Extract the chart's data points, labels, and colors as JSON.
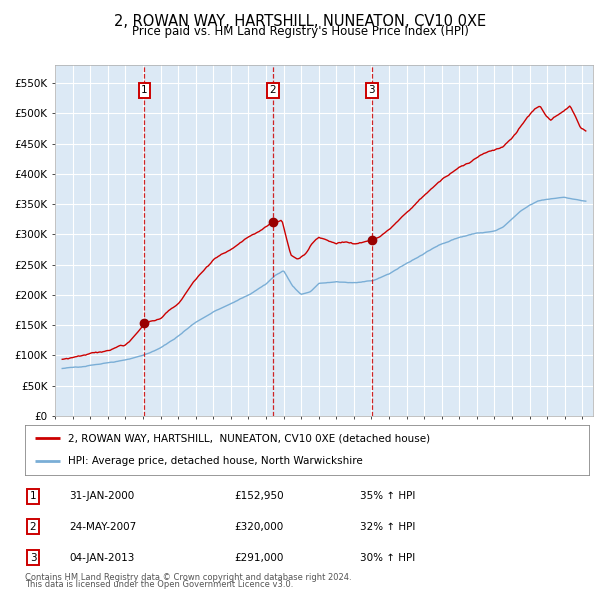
{
  "title": "2, ROWAN WAY, HARTSHILL, NUNEATON, CV10 0XE",
  "subtitle": "Price paid vs. HM Land Registry's House Price Index (HPI)",
  "legend_line1": "2, ROWAN WAY, HARTSHILL,  NUNEATON, CV10 0XE (detached house)",
  "legend_line2": "HPI: Average price, detached house, North Warwickshire",
  "footer1": "Contains HM Land Registry data © Crown copyright and database right 2024.",
  "footer2": "This data is licensed under the Open Government Licence v3.0.",
  "transactions": [
    {
      "num": 1,
      "date": "31-JAN-2000",
      "price": "152,950",
      "change": "35% ↑ HPI"
    },
    {
      "num": 2,
      "date": "24-MAY-2007",
      "price": "320,000",
      "change": "32% ↑ HPI"
    },
    {
      "num": 3,
      "date": "04-JAN-2013",
      "price": "291,000",
      "change": "30% ↑ HPI"
    }
  ],
  "transaction_dates_decimal": [
    2000.08,
    2007.39,
    2013.01
  ],
  "transaction_prices": [
    152950,
    320000,
    291000
  ],
  "red_line_color": "#cc0000",
  "blue_line_color": "#7aaed6",
  "background_color": "#dce9f5",
  "grid_color": "#ffffff",
  "vline_color": "#cc0000",
  "marker_color": "#990000",
  "ylim_max": 580000,
  "xlim_start": 1995.4,
  "xlim_end": 2025.6,
  "yticks": [
    0,
    50000,
    100000,
    150000,
    200000,
    250000,
    300000,
    350000,
    400000,
    450000,
    500000,
    550000
  ],
  "ytick_labels": [
    "£0",
    "£50K",
    "£100K",
    "£150K",
    "£200K",
    "£250K",
    "£300K",
    "£350K",
    "£400K",
    "£450K",
    "£500K",
    "£550K"
  ],
  "hpi_anchors": [
    [
      1995.4,
      78000
    ],
    [
      1996.0,
      80000
    ],
    [
      1997.0,
      84000
    ],
    [
      1998.0,
      88000
    ],
    [
      1999.0,
      93000
    ],
    [
      2000.0,
      100000
    ],
    [
      2001.0,
      112000
    ],
    [
      2002.0,
      132000
    ],
    [
      2003.0,
      155000
    ],
    [
      2004.0,
      172000
    ],
    [
      2005.0,
      185000
    ],
    [
      2006.0,
      200000
    ],
    [
      2007.0,
      218000
    ],
    [
      2007.5,
      232000
    ],
    [
      2008.0,
      240000
    ],
    [
      2008.5,
      215000
    ],
    [
      2009.0,
      200000
    ],
    [
      2009.5,
      205000
    ],
    [
      2010.0,
      218000
    ],
    [
      2011.0,
      222000
    ],
    [
      2012.0,
      220000
    ],
    [
      2013.0,
      222000
    ],
    [
      2014.0,
      235000
    ],
    [
      2015.0,
      252000
    ],
    [
      2016.0,
      268000
    ],
    [
      2017.0,
      285000
    ],
    [
      2018.0,
      295000
    ],
    [
      2019.0,
      302000
    ],
    [
      2020.0,
      305000
    ],
    [
      2020.5,
      312000
    ],
    [
      2021.0,
      325000
    ],
    [
      2021.5,
      338000
    ],
    [
      2022.0,
      348000
    ],
    [
      2022.5,
      355000
    ],
    [
      2023.0,
      358000
    ],
    [
      2023.5,
      360000
    ],
    [
      2024.0,
      362000
    ],
    [
      2024.5,
      358000
    ],
    [
      2025.2,
      355000
    ]
  ],
  "red_anchors": [
    [
      1995.4,
      93000
    ],
    [
      1996.0,
      97000
    ],
    [
      1997.0,
      103000
    ],
    [
      1998.0,
      109000
    ],
    [
      1999.0,
      118000
    ],
    [
      1999.5,
      130000
    ],
    [
      2000.08,
      152950
    ],
    [
      2001.0,
      162000
    ],
    [
      2002.0,
      185000
    ],
    [
      2003.0,
      225000
    ],
    [
      2004.0,
      258000
    ],
    [
      2005.0,
      275000
    ],
    [
      2006.0,
      295000
    ],
    [
      2006.5,
      305000
    ],
    [
      2007.2,
      318000
    ],
    [
      2007.39,
      320000
    ],
    [
      2007.6,
      322000
    ],
    [
      2007.9,
      325000
    ],
    [
      2008.4,
      265000
    ],
    [
      2008.8,
      258000
    ],
    [
      2009.0,
      262000
    ],
    [
      2009.3,
      270000
    ],
    [
      2009.6,
      285000
    ],
    [
      2010.0,
      295000
    ],
    [
      2010.5,
      290000
    ],
    [
      2011.0,
      285000
    ],
    [
      2011.5,
      288000
    ],
    [
      2012.0,
      285000
    ],
    [
      2012.5,
      287000
    ],
    [
      2013.01,
      291000
    ],
    [
      2013.5,
      296000
    ],
    [
      2014.0,
      308000
    ],
    [
      2015.0,
      335000
    ],
    [
      2016.0,
      365000
    ],
    [
      2017.0,
      390000
    ],
    [
      2018.0,
      410000
    ],
    [
      2019.0,
      428000
    ],
    [
      2019.5,
      435000
    ],
    [
      2020.0,
      438000
    ],
    [
      2020.5,
      445000
    ],
    [
      2021.0,
      460000
    ],
    [
      2021.5,
      478000
    ],
    [
      2022.0,
      498000
    ],
    [
      2022.3,
      508000
    ],
    [
      2022.6,
      512000
    ],
    [
      2022.9,
      498000
    ],
    [
      2023.2,
      490000
    ],
    [
      2023.5,
      496000
    ],
    [
      2023.8,
      502000
    ],
    [
      2024.0,
      506000
    ],
    [
      2024.3,
      510000
    ],
    [
      2024.6,
      495000
    ],
    [
      2024.9,
      478000
    ],
    [
      2025.2,
      472000
    ]
  ]
}
